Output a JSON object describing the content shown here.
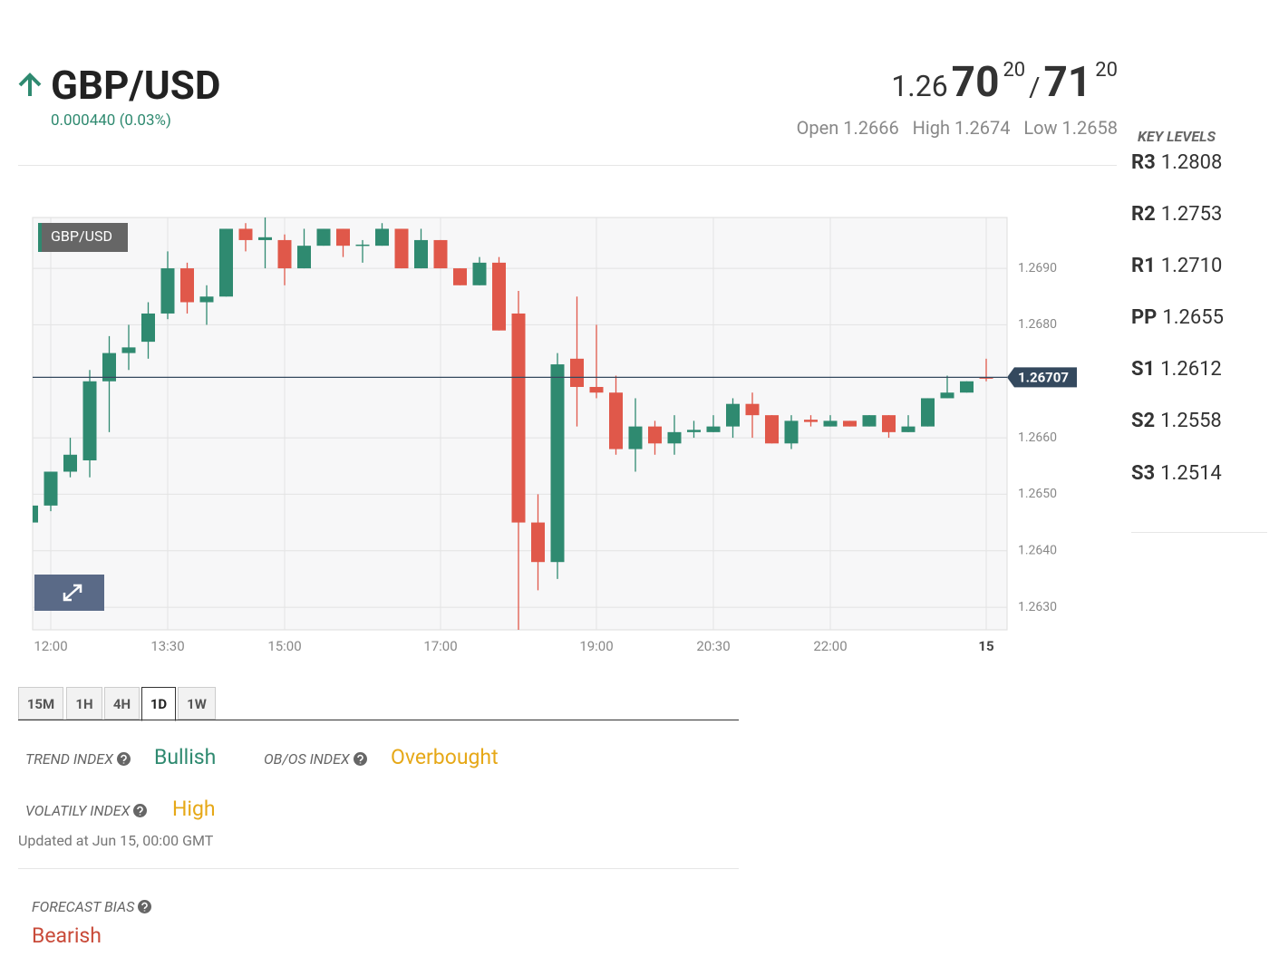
{
  "header": {
    "symbol": "GBP/USD",
    "change": "0.000440 (0.03%)"
  },
  "quote": {
    "bid_big": "1.26",
    "bid_pips": "70",
    "bid_frac": "20",
    "separator": "/",
    "ask_pips": "71",
    "ask_frac": "20"
  },
  "ohl": [
    {
      "label": "Open",
      "value": "1.2666"
    },
    {
      "label": "High",
      "value": "1.2674"
    },
    {
      "label": "Low",
      "value": "1.2658"
    }
  ],
  "key_levels": {
    "title": "KEY LEVELS",
    "levels": [
      {
        "label": "R3",
        "value": "1.2808"
      },
      {
        "label": "R2",
        "value": "1.2753"
      },
      {
        "label": "R1",
        "value": "1.2710"
      },
      {
        "label": "PP",
        "value": "1.2655"
      },
      {
        "label": "S1",
        "value": "1.2612"
      },
      {
        "label": "S2",
        "value": "1.2558"
      },
      {
        "label": "S3",
        "value": "1.2514"
      }
    ]
  },
  "chart_data": {
    "type": "candlestick",
    "label": "GBP/USD",
    "categories": [
      null,
      "12:00",
      null,
      null,
      null,
      null,
      null,
      "13:30",
      null,
      null,
      null,
      null,
      null,
      "15:00",
      null,
      null,
      null,
      null,
      null,
      null,
      null,
      "17:00",
      null,
      null,
      null,
      null,
      null,
      null,
      null,
      "19:00",
      null,
      null,
      null,
      null,
      null,
      "20:30",
      null,
      null,
      null,
      null,
      null,
      "22:00",
      null,
      null,
      null,
      null,
      null,
      null,
      null,
      "15"
    ],
    "open": [
      1.2645,
      1.2648,
      1.2654,
      1.2656,
      1.267,
      1.2675,
      1.2677,
      1.2682,
      1.269,
      1.2684,
      1.2685,
      1.2697,
      1.2695,
      1.2695,
      1.269,
      1.2694,
      1.2697,
      1.2694,
      1.2694,
      1.2697,
      1.269,
      1.2695,
      1.269,
      1.2687,
      1.2691,
      1.2682,
      1.2645,
      1.2638,
      1.2674,
      1.2669,
      1.2668,
      1.2658,
      1.2662,
      1.2659,
      1.2661,
      1.2661,
      1.2662,
      1.2666,
      1.2664,
      1.2659,
      1.26632,
      1.2662,
      1.2663,
      1.2662,
      1.2664,
      1.2661,
      1.2662,
      1.2667,
      1.2668,
      1.26707
    ],
    "high": [
      1.26485,
      1.2654,
      1.266,
      1.2672,
      1.2678,
      1.268,
      1.2684,
      1.2693,
      1.2691,
      1.2687,
      1.2697,
      1.2698,
      1.2699,
      1.2696,
      1.2697,
      1.2697,
      1.2697,
      1.2695,
      1.2698,
      1.2697,
      1.2697,
      1.2695,
      1.269,
      1.2692,
      1.2692,
      1.2686,
      1.265,
      1.2675,
      1.2685,
      1.268,
      1.2671,
      1.2667,
      1.2663,
      1.2664,
      1.2663,
      1.2664,
      1.2667,
      1.2668,
      1.2664,
      1.2664,
      1.2664,
      1.2664,
      1.2663,
      1.2664,
      1.2664,
      1.2664,
      1.2667,
      1.2671,
      1.267,
      1.2674
    ],
    "low": [
      1.2645,
      1.2647,
      1.2653,
      1.2653,
      1.2661,
      1.2672,
      1.2674,
      1.2681,
      1.2682,
      1.268,
      1.2685,
      1.2693,
      1.269,
      1.2687,
      1.269,
      1.2694,
      1.2692,
      1.2691,
      1.2694,
      1.269,
      1.269,
      1.269,
      1.2687,
      1.2687,
      1.2679,
      1.2626,
      1.2633,
      1.2635,
      1.2662,
      1.2667,
      1.2657,
      1.2654,
      1.2657,
      1.2657,
      1.266,
      1.2661,
      1.266,
      1.266,
      1.2659,
      1.2658,
      1.2662,
      1.2662,
      1.2662,
      1.2662,
      1.266,
      1.2661,
      1.2662,
      1.2667,
      1.2668,
      1.267
    ],
    "close": [
      1.2648,
      1.2654,
      1.2657,
      1.267,
      1.2675,
      1.2676,
      1.2682,
      1.269,
      1.2684,
      1.2685,
      1.2697,
      1.2695,
      1.26955,
      1.269,
      1.2694,
      1.2697,
      1.2694,
      1.26942,
      1.2697,
      1.269,
      1.2695,
      1.269,
      1.2687,
      1.2691,
      1.2679,
      1.2645,
      1.2638,
      1.2673,
      1.2669,
      1.2668,
      1.2658,
      1.2662,
      1.2659,
      1.2661,
      1.26614,
      1.2662,
      1.2666,
      1.2664,
      1.2659,
      1.2663,
      1.26628,
      1.2663,
      1.2662,
      1.2664,
      1.2661,
      1.2662,
      1.2667,
      1.2668,
      1.267,
      1.26705
    ],
    "up_color": "#2f8a70",
    "down_color": "#e0584a",
    "ylim": [
      1.2626,
      1.2699
    ],
    "yticks": [
      {
        "value": 1.263,
        "label": "1.2630"
      },
      {
        "value": 1.264,
        "label": "1.2640"
      },
      {
        "value": 1.265,
        "label": "1.2650"
      },
      {
        "value": 1.266,
        "label": "1.2660"
      },
      {
        "value": 1.268,
        "label": "1.2680"
      },
      {
        "value": 1.269,
        "label": "1.2690"
      }
    ],
    "current_price": 1.26707,
    "grid": true
  },
  "tabs": [
    "15M",
    "1H",
    "4H",
    "1D",
    "1W"
  ],
  "indices": [
    {
      "label": "TREND INDEX",
      "value": "Bullish"
    },
    {
      "label": "OB/OS INDEX",
      "value": "Overbought"
    },
    {
      "label": "VOLATILY INDEX",
      "value": "High"
    }
  ],
  "updated": "Updated at Jun 15, 00:00 GMT",
  "forecast": {
    "label": "FORECAST BIAS",
    "value": "Bearish"
  }
}
